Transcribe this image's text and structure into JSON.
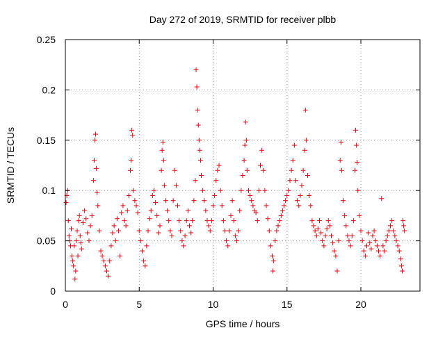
{
  "chart_data": {
    "type": "scatter",
    "title": "Day 272 of 2019, SRMTID for receiver plbb",
    "xlabel": "GPS time / hours",
    "ylabel": "SRMTID / TECUs",
    "xlim": [
      0,
      24
    ],
    "ylim": [
      0,
      0.25
    ],
    "xticks": [
      0,
      5,
      10,
      15,
      20
    ],
    "xtick_labels": [
      "0",
      "5",
      "10",
      "15",
      "20"
    ],
    "yticks": [
      0,
      0.05,
      0.1,
      0.15,
      0.2,
      0.25
    ],
    "ytick_labels": [
      "0",
      "0.05",
      "0.1",
      "0.15",
      "0.2",
      "0.25"
    ],
    "grid": true,
    "marker_color": "#e8000b",
    "marker": "plus",
    "series": [
      {
        "name": "SRMTID",
        "points": [
          [
            0.05,
            0.088
          ],
          [
            0.1,
            0.095
          ],
          [
            0.15,
            0.1
          ],
          [
            0.2,
            0.07
          ],
          [
            0.25,
            0.055
          ],
          [
            0.3,
            0.05
          ],
          [
            0.35,
            0.045
          ],
          [
            0.4,
            0.062
          ],
          [
            0.45,
            0.035
          ],
          [
            0.5,
            0.03
          ],
          [
            0.55,
            0.025
          ],
          [
            0.6,
            0.045
          ],
          [
            0.65,
            0.012
          ],
          [
            0.7,
            0.02
          ],
          [
            0.75,
            0.05
          ],
          [
            0.8,
            0.06
          ],
          [
            0.85,
            0.035
          ],
          [
            0.9,
            0.07
          ],
          [
            0.95,
            0.075
          ],
          [
            1.0,
            0.055
          ],
          [
            1.05,
            0.048
          ],
          [
            1.1,
            0.042
          ],
          [
            1.2,
            0.068
          ],
          [
            1.3,
            0.08
          ],
          [
            1.4,
            0.072
          ],
          [
            1.5,
            0.058
          ],
          [
            1.6,
            0.05
          ],
          [
            1.7,
            0.065
          ],
          [
            1.8,
            0.075
          ],
          [
            1.9,
            0.11
          ],
          [
            1.95,
            0.13
          ],
          [
            2.0,
            0.15
          ],
          [
            2.05,
            0.156
          ],
          [
            2.1,
            0.122
          ],
          [
            2.15,
            0.098
          ],
          [
            2.2,
            0.085
          ],
          [
            2.3,
            0.06
          ],
          [
            2.4,
            0.04
          ],
          [
            2.5,
            0.035
          ],
          [
            2.6,
            0.03
          ],
          [
            2.7,
            0.025
          ],
          [
            2.8,
            0.02
          ],
          [
            2.9,
            0.015
          ],
          [
            3.0,
            0.03
          ],
          [
            3.1,
            0.045
          ],
          [
            3.2,
            0.058
          ],
          [
            3.3,
            0.065
          ],
          [
            3.4,
            0.05
          ],
          [
            3.5,
            0.072
          ],
          [
            3.6,
            0.06
          ],
          [
            3.7,
            0.035
          ],
          [
            3.8,
            0.078
          ],
          [
            3.9,
            0.085
          ],
          [
            4.0,
            0.07
          ],
          [
            4.1,
            0.065
          ],
          [
            4.2,
            0.08
          ],
          [
            4.3,
            0.095
          ],
          [
            4.4,
            0.12
          ],
          [
            4.45,
            0.13
          ],
          [
            4.5,
            0.16
          ],
          [
            4.55,
            0.155
          ],
          [
            4.6,
            0.1
          ],
          [
            4.7,
            0.09
          ],
          [
            4.8,
            0.085
          ],
          [
            4.9,
            0.078
          ],
          [
            5.0,
            0.06
          ],
          [
            5.1,
            0.05
          ],
          [
            5.2,
            0.04
          ],
          [
            5.3,
            0.03
          ],
          [
            5.4,
            0.025
          ],
          [
            5.5,
            0.045
          ],
          [
            5.6,
            0.06
          ],
          [
            5.7,
            0.072
          ],
          [
            5.8,
            0.08
          ],
          [
            5.9,
            0.095
          ],
          [
            6.0,
            0.1
          ],
          [
            6.1,
            0.088
          ],
          [
            6.2,
            0.075
          ],
          [
            6.3,
            0.058
          ],
          [
            6.4,
            0.065
          ],
          [
            6.5,
            0.12
          ],
          [
            6.55,
            0.14
          ],
          [
            6.6,
            0.148
          ],
          [
            6.65,
            0.13
          ],
          [
            6.7,
            0.105
          ],
          [
            6.8,
            0.09
          ],
          [
            6.9,
            0.08
          ],
          [
            7.0,
            0.07
          ],
          [
            7.1,
            0.06
          ],
          [
            7.2,
            0.055
          ],
          [
            7.3,
            0.09
          ],
          [
            7.4,
            0.12
          ],
          [
            7.5,
            0.105
          ],
          [
            7.6,
            0.085
          ],
          [
            7.7,
            0.07
          ],
          [
            7.8,
            0.06
          ],
          [
            7.9,
            0.05
          ],
          [
            8.0,
            0.045
          ],
          [
            8.1,
            0.055
          ],
          [
            8.2,
            0.07
          ],
          [
            8.3,
            0.08
          ],
          [
            8.4,
            0.065
          ],
          [
            8.5,
            0.058
          ],
          [
            8.6,
            0.07
          ],
          [
            8.7,
            0.09
          ],
          [
            8.8,
            0.11
          ],
          [
            8.85,
            0.22
          ],
          [
            8.9,
            0.203
          ],
          [
            8.95,
            0.18
          ],
          [
            9.0,
            0.165
          ],
          [
            9.05,
            0.15
          ],
          [
            9.1,
            0.14
          ],
          [
            9.15,
            0.13
          ],
          [
            9.2,
            0.115
          ],
          [
            9.3,
            0.1
          ],
          [
            9.4,
            0.09
          ],
          [
            9.5,
            0.08
          ],
          [
            9.6,
            0.07
          ],
          [
            9.7,
            0.065
          ],
          [
            9.8,
            0.06
          ],
          [
            9.9,
            0.07
          ],
          [
            10.0,
            0.085
          ],
          [
            10.1,
            0.095
          ],
          [
            10.2,
            0.11
          ],
          [
            10.3,
            0.12
          ],
          [
            10.4,
            0.125
          ],
          [
            10.5,
            0.1
          ],
          [
            10.6,
            0.085
          ],
          [
            10.7,
            0.07
          ],
          [
            10.8,
            0.06
          ],
          [
            10.9,
            0.05
          ],
          [
            11.0,
            0.045
          ],
          [
            11.1,
            0.06
          ],
          [
            11.2,
            0.075
          ],
          [
            11.3,
            0.09
          ],
          [
            11.4,
            0.07
          ],
          [
            11.5,
            0.055
          ],
          [
            11.6,
            0.05
          ],
          [
            11.7,
            0.06
          ],
          [
            11.8,
            0.08
          ],
          [
            11.9,
            0.1
          ],
          [
            12.0,
            0.115
          ],
          [
            12.1,
            0.13
          ],
          [
            12.15,
            0.145
          ],
          [
            12.2,
            0.168
          ],
          [
            12.25,
            0.15
          ],
          [
            12.3,
            0.12
          ],
          [
            12.4,
            0.1
          ],
          [
            12.5,
            0.095
          ],
          [
            12.6,
            0.09
          ],
          [
            12.7,
            0.085
          ],
          [
            12.8,
            0.08
          ],
          [
            12.9,
            0.078
          ],
          [
            13.0,
            0.07
          ],
          [
            13.1,
            0.1
          ],
          [
            13.2,
            0.125
          ],
          [
            13.3,
            0.14
          ],
          [
            13.4,
            0.12
          ],
          [
            13.5,
            0.1
          ],
          [
            13.6,
            0.085
          ],
          [
            13.7,
            0.072
          ],
          [
            13.8,
            0.06
          ],
          [
            13.9,
            0.045
          ],
          [
            14.0,
            0.035
          ],
          [
            14.05,
            0.02
          ],
          [
            14.1,
            0.03
          ],
          [
            14.2,
            0.05
          ],
          [
            14.3,
            0.06
          ],
          [
            14.4,
            0.065
          ],
          [
            14.5,
            0.07
          ],
          [
            14.6,
            0.075
          ],
          [
            14.7,
            0.08
          ],
          [
            14.8,
            0.085
          ],
          [
            14.9,
            0.09
          ],
          [
            15.0,
            0.095
          ],
          [
            15.1,
            0.1
          ],
          [
            15.2,
            0.11
          ],
          [
            15.3,
            0.12
          ],
          [
            15.4,
            0.13
          ],
          [
            15.5,
            0.145
          ],
          [
            15.6,
            0.11
          ],
          [
            15.7,
            0.09
          ],
          [
            15.8,
            0.085
          ],
          [
            15.9,
            0.095
          ],
          [
            16.0,
            0.105
          ],
          [
            16.1,
            0.12
          ],
          [
            16.2,
            0.14
          ],
          [
            16.25,
            0.18
          ],
          [
            16.3,
            0.15
          ],
          [
            16.4,
            0.115
          ],
          [
            16.5,
            0.095
          ],
          [
            16.6,
            0.085
          ],
          [
            16.7,
            0.07
          ],
          [
            16.8,
            0.065
          ],
          [
            16.9,
            0.06
          ],
          [
            17.0,
            0.055
          ],
          [
            17.1,
            0.062
          ],
          [
            17.2,
            0.07
          ],
          [
            17.3,
            0.058
          ],
          [
            17.4,
            0.05
          ],
          [
            17.5,
            0.045
          ],
          [
            17.6,
            0.055
          ],
          [
            17.7,
            0.062
          ],
          [
            17.8,
            0.07
          ],
          [
            17.9,
            0.065
          ],
          [
            18.0,
            0.055
          ],
          [
            18.1,
            0.048
          ],
          [
            18.2,
            0.04
          ],
          [
            18.3,
            0.035
          ],
          [
            18.4,
            0.02
          ],
          [
            18.5,
            0.05
          ],
          [
            18.6,
            0.13
          ],
          [
            18.65,
            0.148
          ],
          [
            18.7,
            0.12
          ],
          [
            18.8,
            0.09
          ],
          [
            18.9,
            0.075
          ],
          [
            19.0,
            0.065
          ],
          [
            19.1,
            0.055
          ],
          [
            19.2,
            0.05
          ],
          [
            19.3,
            0.045
          ],
          [
            19.4,
            0.055
          ],
          [
            19.5,
            0.07
          ],
          [
            19.6,
            0.12
          ],
          [
            19.65,
            0.16
          ],
          [
            19.7,
            0.145
          ],
          [
            19.75,
            0.128
          ],
          [
            19.8,
            0.1
          ],
          [
            19.9,
            0.075
          ],
          [
            20.0,
            0.06
          ],
          [
            20.1,
            0.05
          ],
          [
            20.2,
            0.04
          ],
          [
            20.3,
            0.035
          ],
          [
            20.4,
            0.045
          ],
          [
            20.5,
            0.058
          ],
          [
            20.6,
            0.048
          ],
          [
            20.7,
            0.042
          ],
          [
            20.8,
            0.055
          ],
          [
            20.9,
            0.06
          ],
          [
            21.0,
            0.05
          ],
          [
            21.1,
            0.045
          ],
          [
            21.2,
            0.04
          ],
          [
            21.3,
            0.035
          ],
          [
            21.4,
            0.092
          ],
          [
            21.5,
            0.045
          ],
          [
            21.6,
            0.04
          ],
          [
            21.7,
            0.05
          ],
          [
            21.8,
            0.055
          ],
          [
            21.9,
            0.06
          ],
          [
            22.0,
            0.065
          ],
          [
            22.1,
            0.07
          ],
          [
            22.2,
            0.06
          ],
          [
            22.3,
            0.055
          ],
          [
            22.4,
            0.05
          ],
          [
            22.5,
            0.045
          ],
          [
            22.6,
            0.04
          ],
          [
            22.7,
            0.032
          ],
          [
            22.75,
            0.025
          ],
          [
            22.8,
            0.02
          ],
          [
            22.85,
            0.07
          ],
          [
            22.9,
            0.065
          ],
          [
            22.95,
            0.06
          ]
        ]
      }
    ]
  }
}
